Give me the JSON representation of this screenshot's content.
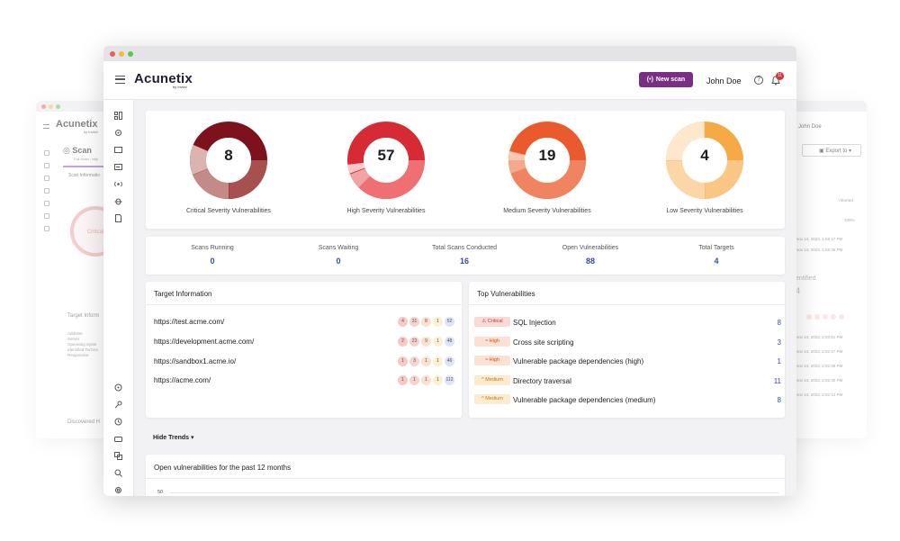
{
  "bg_left": {
    "logo": "Acunetix",
    "logo_sub": "by Invicti",
    "page_title": "Scan",
    "subtitle": "Full Scan - http",
    "tab": "Scan Informatio",
    "threat_label": "Critical",
    "target_info_title": "Target Inform",
    "rows": [
      "Address",
      "Server",
      "Operating Syste",
      "Identified Techno",
      "Responsive"
    ],
    "discovered": "Discovered H"
  },
  "bg_right": {
    "user": "John Doe",
    "export_label": "Export to",
    "aborted": "Aborted",
    "progress": "100%",
    "dates_top": [
      "Nov 13, 2023, 1:58:17 PM",
      "Nov 13, 2023, 1:58:36 PM"
    ],
    "identified_label": "entified",
    "identified_value": "4",
    "dates_bottom": [
      "Nov 13, 2023, 2:03:51 PM",
      "Nov 13, 2023, 2:02:47 PM",
      "Nov 13, 2023, 2:02:38 PM",
      "Nov 13, 2023, 2:02:30 PM",
      "Nov 13, 2023, 2:02:14 PM"
    ]
  },
  "header": {
    "logo": "Acunetix",
    "logo_sub": "by Invicti",
    "new_scan_label": "New scan",
    "user_name": "John Doe",
    "help_glyph": "?",
    "notification_count": "11"
  },
  "donuts": [
    {
      "value": "8",
      "label": "Critical Severity Vulnerabilities"
    },
    {
      "value": "57",
      "label": "High Severity Vulnerabilities"
    },
    {
      "value": "19",
      "label": "Medium Severity Vulnerabilities"
    },
    {
      "value": "4",
      "label": "Low Severity Vulnerabilities"
    }
  ],
  "stats": [
    {
      "label": "Scans Running",
      "value": "0"
    },
    {
      "label": "Scans Waiting",
      "value": "0"
    },
    {
      "label": "Total Scans Conducted",
      "value": "16"
    },
    {
      "label": "Open Vulnerabilities",
      "value": "88"
    },
    {
      "label": "Total Targets",
      "value": "4"
    }
  ],
  "target_info": {
    "title": "Target Information",
    "rows": [
      {
        "url": "https://test.acme.com/",
        "counts": [
          "4",
          "31",
          "8",
          "1",
          "52"
        ]
      },
      {
        "url": "https://development.acme.com/",
        "counts": [
          "2",
          "23",
          "9",
          "1",
          "48"
        ]
      },
      {
        "url": "https://sandbox1.acme.io/",
        "counts": [
          "1",
          "3",
          "1",
          "1",
          "46"
        ]
      },
      {
        "url": "https://acme.com/",
        "counts": [
          "1",
          "1",
          "1",
          "1",
          "112"
        ]
      }
    ]
  },
  "top_vulns": {
    "title": "Top Vulnerabilities",
    "rows": [
      {
        "severity": "Critical",
        "name": "SQL Injection",
        "count": "8"
      },
      {
        "severity": "High",
        "name": "Cross site scripting",
        "count": "3"
      },
      {
        "severity": "High",
        "name": "Vulnerable package dependencies (high)",
        "count": "1"
      },
      {
        "severity": "Medium",
        "name": "Directory traversal",
        "count": "11"
      },
      {
        "severity": "Medium",
        "name": "Vulnerable package dependencies (medium)",
        "count": "8"
      }
    ]
  },
  "trends": {
    "toggle_label": "Hide Trends",
    "chart_title": "Open vulnerabilities for the past 12 months",
    "y_tick_top": "50"
  },
  "colors": {
    "brand": "#7a2f86",
    "link_blue": "#3b49a8",
    "critical": "#7a0f1a",
    "high": "#e0353f",
    "medium": "#ee6a3a",
    "low": "#f7b04c"
  }
}
